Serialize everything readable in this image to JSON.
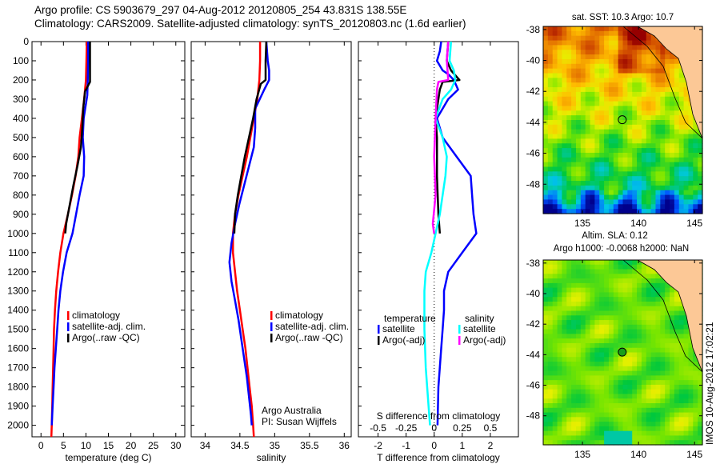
{
  "header": {
    "line1": "Argo profile: CS 5903679_297 04-Aug-2012 20120805_254 43.831S 138.55E",
    "line2": "Climatology: CARS2009. Satellite-adjusted climatology: synTS_20120803.nc (1.6d earlier)"
  },
  "colors": {
    "climatology": "#ff0000",
    "satellite": "#0000ff",
    "argo": "#000000",
    "sal_satellite": "#00ffff",
    "sal_argo": "#ff00ff",
    "land": "#fcc896"
  },
  "chart_data": [
    {
      "id": "temperature",
      "type": "line",
      "xlabel": "temperature (deg C)",
      "ylabel": "",
      "xlim": [
        -2,
        32
      ],
      "ylim": [
        2060,
        0
      ],
      "xticks": [
        0,
        5,
        10,
        15,
        20,
        25,
        30
      ],
      "yticks": [
        0,
        100,
        200,
        300,
        400,
        500,
        600,
        700,
        800,
        900,
        1000,
        1100,
        1200,
        1300,
        1400,
        1500,
        1600,
        1700,
        1800,
        1900,
        2000
      ],
      "legend": [
        "climatology",
        "satellite-adj. clim.",
        "Argo(..raw -QC)"
      ],
      "series": [
        {
          "name": "climatology",
          "color": "#ff0000",
          "points": [
            [
              10.2,
              0
            ],
            [
              10.1,
              100
            ],
            [
              10.0,
              200
            ],
            [
              9.6,
              300
            ],
            [
              9.1,
              400
            ],
            [
              8.6,
              500
            ],
            [
              8.3,
              600
            ],
            [
              7.7,
              700
            ],
            [
              6.9,
              800
            ],
            [
              6.0,
              900
            ],
            [
              5.0,
              1000
            ],
            [
              4.3,
              1100
            ],
            [
              3.8,
              1200
            ],
            [
              3.4,
              1300
            ],
            [
              3.1,
              1400
            ],
            [
              2.9,
              1500
            ],
            [
              2.8,
              1600
            ],
            [
              2.7,
              1700
            ],
            [
              2.6,
              1800
            ],
            [
              2.5,
              1900
            ],
            [
              2.4,
              2000
            ],
            [
              2.3,
              2060
            ]
          ]
        },
        {
          "name": "satellite-adj. clim.",
          "color": "#0000ff",
          "points": [
            [
              10.5,
              0
            ],
            [
              10.5,
              100
            ],
            [
              10.4,
              200
            ],
            [
              10.3,
              280
            ],
            [
              9.5,
              400
            ],
            [
              9.3,
              500
            ],
            [
              9.6,
              600
            ],
            [
              9.5,
              700
            ],
            [
              8.6,
              800
            ],
            [
              7.8,
              900
            ],
            [
              7.0,
              1000
            ],
            [
              5.7,
              1100
            ],
            [
              4.9,
              1200
            ],
            [
              4.3,
              1300
            ],
            [
              3.9,
              1400
            ],
            [
              3.6,
              1500
            ],
            [
              3.3,
              1600
            ],
            [
              3.0,
              1700
            ],
            [
              2.8,
              1800
            ],
            [
              2.6,
              1900
            ],
            [
              2.4,
              2000
            ]
          ]
        },
        {
          "name": "Argo(..raw -QC)",
          "color": "#000000",
          "points": [
            [
              10.9,
              0
            ],
            [
              10.9,
              100
            ],
            [
              10.9,
              210
            ],
            [
              9.8,
              260
            ],
            [
              9.4,
              350
            ],
            [
              9.2,
              450
            ],
            [
              8.9,
              550
            ],
            [
              8.1,
              650
            ],
            [
              7.2,
              750
            ],
            [
              6.4,
              850
            ],
            [
              5.6,
              950
            ],
            [
              5.4,
              1000
            ]
          ]
        }
      ]
    },
    {
      "id": "salinity",
      "type": "line",
      "xlabel": "salinity",
      "xlim": [
        33.8,
        36.1
      ],
      "ylim": [
        2060,
        0
      ],
      "xticks": [
        34,
        34.5,
        35,
        35.5,
        36
      ],
      "xtick_labels": [
        "34",
        "34.5",
        "35",
        "35.5",
        "36"
      ],
      "legend": [
        "climatology",
        "satellite-adj. clim.",
        "Argo(..raw -QC)"
      ],
      "annotation": [
        "Argo Australia",
        "PI: Susan Wijffels"
      ],
      "series": [
        {
          "name": "climatology",
          "color": "#ff0000",
          "points": [
            [
              34.79,
              0
            ],
            [
              34.79,
              100
            ],
            [
              34.78,
              200
            ],
            [
              34.75,
              300
            ],
            [
              34.7,
              400
            ],
            [
              34.65,
              500
            ],
            [
              34.6,
              600
            ],
            [
              34.54,
              700
            ],
            [
              34.48,
              800
            ],
            [
              34.43,
              900
            ],
            [
              34.4,
              1000
            ],
            [
              34.4,
              1100
            ],
            [
              34.43,
              1200
            ],
            [
              34.46,
              1300
            ],
            [
              34.5,
              1400
            ],
            [
              34.54,
              1500
            ],
            [
              34.58,
              1600
            ],
            [
              34.61,
              1700
            ],
            [
              34.64,
              1800
            ],
            [
              34.67,
              1900
            ],
            [
              34.69,
              2000
            ],
            [
              34.7,
              2060
            ]
          ]
        },
        {
          "name": "satellite-adj. clim.",
          "color": "#0000ff",
          "points": [
            [
              34.88,
              0
            ],
            [
              34.9,
              100
            ],
            [
              34.92,
              150
            ],
            [
              34.92,
              200
            ],
            [
              34.85,
              250
            ],
            [
              34.72,
              350
            ],
            [
              34.72,
              450
            ],
            [
              34.7,
              550
            ],
            [
              34.63,
              650
            ],
            [
              34.56,
              750
            ],
            [
              34.49,
              850
            ],
            [
              34.43,
              950
            ],
            [
              34.38,
              1050
            ],
            [
              34.35,
              1150
            ],
            [
              34.38,
              1250
            ],
            [
              34.43,
              1350
            ],
            [
              34.48,
              1450
            ],
            [
              34.52,
              1550
            ],
            [
              34.56,
              1650
            ],
            [
              34.6,
              1750
            ],
            [
              34.63,
              1850
            ],
            [
              34.66,
              1950
            ],
            [
              34.67,
              2000
            ]
          ]
        },
        {
          "name": "Argo(..raw -QC)",
          "color": "#000000",
          "points": [
            [
              34.88,
              0
            ],
            [
              34.87,
              100
            ],
            [
              34.87,
              200
            ],
            [
              34.8,
              220
            ],
            [
              34.74,
              300
            ],
            [
              34.69,
              400
            ],
            [
              34.63,
              500
            ],
            [
              34.57,
              600
            ],
            [
              34.52,
              700
            ],
            [
              34.47,
              800
            ],
            [
              34.43,
              900
            ],
            [
              34.42,
              1000
            ]
          ]
        }
      ]
    },
    {
      "id": "difference",
      "type": "line",
      "xlabel": "T difference from climatology",
      "xlabel_top": "S difference from climatology",
      "xlim": [
        -2.7,
        3.0
      ],
      "ylim": [
        2060,
        0
      ],
      "xticks": [
        -2,
        -1,
        0,
        1,
        2
      ],
      "xtick_labels": [
        "-2",
        "-1",
        "0",
        "1",
        "2"
      ],
      "s_xticks": [
        -0.5,
        -0.25,
        0,
        0.25,
        0.5
      ],
      "s_xtick_labels": [
        "-0.5",
        "-0.25",
        "0",
        "0.25",
        "0.5"
      ],
      "s_scale": 4,
      "legend": {
        "temperature_header": "temperature",
        "salinity_header": "salinity",
        "items": [
          {
            "label": "satellite",
            "group": "temperature",
            "color": "#0000ff"
          },
          {
            "label": "Argo(-adj)",
            "group": "temperature",
            "color": "#000000"
          },
          {
            "label": "satellite",
            "group": "salinity",
            "color": "#00ffff"
          },
          {
            "label": "Argo(-adj)",
            "group": "salinity",
            "color": "#ff00ff"
          }
        ]
      },
      "series": [
        {
          "name": "temperature satellite",
          "color": "#0000ff",
          "points": [
            [
              0.25,
              0
            ],
            [
              0.2,
              50
            ],
            [
              0.1,
              100
            ],
            [
              0.3,
              150
            ],
            [
              0.5,
              170
            ],
            [
              0.7,
              200
            ],
            [
              0.85,
              250
            ],
            [
              0.5,
              300
            ],
            [
              0.1,
              400
            ],
            [
              0.3,
              500
            ],
            [
              0.8,
              600
            ],
            [
              1.3,
              700
            ],
            [
              1.35,
              800
            ],
            [
              1.4,
              900
            ],
            [
              1.5,
              1000
            ],
            [
              1.0,
              1100
            ],
            [
              0.5,
              1200
            ],
            [
              0.35,
              1300
            ],
            [
              0.35,
              1400
            ],
            [
              0.3,
              1500
            ],
            [
              0.25,
              1600
            ],
            [
              0.15,
              1800
            ],
            [
              0.12,
              2000
            ]
          ]
        },
        {
          "name": "temperature Argo(-adj)",
          "color": "#000000",
          "points": [
            [
              0.5,
              0
            ],
            [
              0.45,
              100
            ],
            [
              0.6,
              150
            ],
            [
              0.9,
              200
            ],
            [
              0.3,
              210
            ],
            [
              0.2,
              250
            ],
            [
              0.15,
              300
            ],
            [
              0.05,
              400
            ],
            [
              0.1,
              500
            ],
            [
              0.1,
              700
            ],
            [
              0.15,
              900
            ],
            [
              0.2,
              1000
            ]
          ]
        },
        {
          "name": "salinity satellite",
          "color": "#00ffff",
          "points": [
            [
              0.6,
              0
            ],
            [
              0.55,
              100
            ],
            [
              0.7,
              150
            ],
            [
              0.75,
              200
            ],
            [
              0.6,
              250
            ],
            [
              0.3,
              300
            ],
            [
              0.05,
              400
            ],
            [
              0.3,
              500
            ],
            [
              0.45,
              600
            ],
            [
              0.4,
              700
            ],
            [
              0.3,
              800
            ],
            [
              0.2,
              900
            ],
            [
              0.05,
              1000
            ],
            [
              -0.1,
              1100
            ],
            [
              -0.3,
              1200
            ],
            [
              -0.35,
              1300
            ],
            [
              -0.35,
              1500
            ],
            [
              -0.3,
              1700
            ],
            [
              -0.2,
              1900
            ],
            [
              -0.15,
              2000
            ]
          ]
        },
        {
          "name": "salinity Argo(-adj)",
          "color": "#ff00ff",
          "points": [
            [
              0.5,
              0
            ],
            [
              0.45,
              100
            ],
            [
              0.5,
              200
            ],
            [
              0.15,
              210
            ],
            [
              0.1,
              250
            ],
            [
              0.05,
              400
            ],
            [
              0.0,
              600
            ],
            [
              0.05,
              800
            ],
            [
              -0.05,
              950
            ],
            [
              0.0,
              1000
            ]
          ]
        }
      ]
    }
  ],
  "maps": [
    {
      "id": "sst-map",
      "title": "sat. SST: 10.3 Argo: 10.7",
      "xticks": [
        "135",
        "140",
        "145"
      ],
      "yticks": [
        "-38",
        "-40",
        "-42",
        "-44",
        "-46",
        "-48"
      ],
      "marker": {
        "lon": 138.55,
        "lat": -43.831
      }
    },
    {
      "id": "sla-map",
      "title_line1": "Altim. SLA: 0.12",
      "title_line2": "Argo h1000: -0.0068 h2000: NaN",
      "xticks": [
        "135",
        "140",
        "145"
      ],
      "yticks": [
        "-38",
        "-40",
        "-42",
        "-44",
        "-46",
        "-48"
      ],
      "marker": {
        "lon": 138.55,
        "lat": -43.831
      }
    }
  ],
  "footer": {
    "credit": "IMOS 10-Aug-2012 17:02:21"
  }
}
